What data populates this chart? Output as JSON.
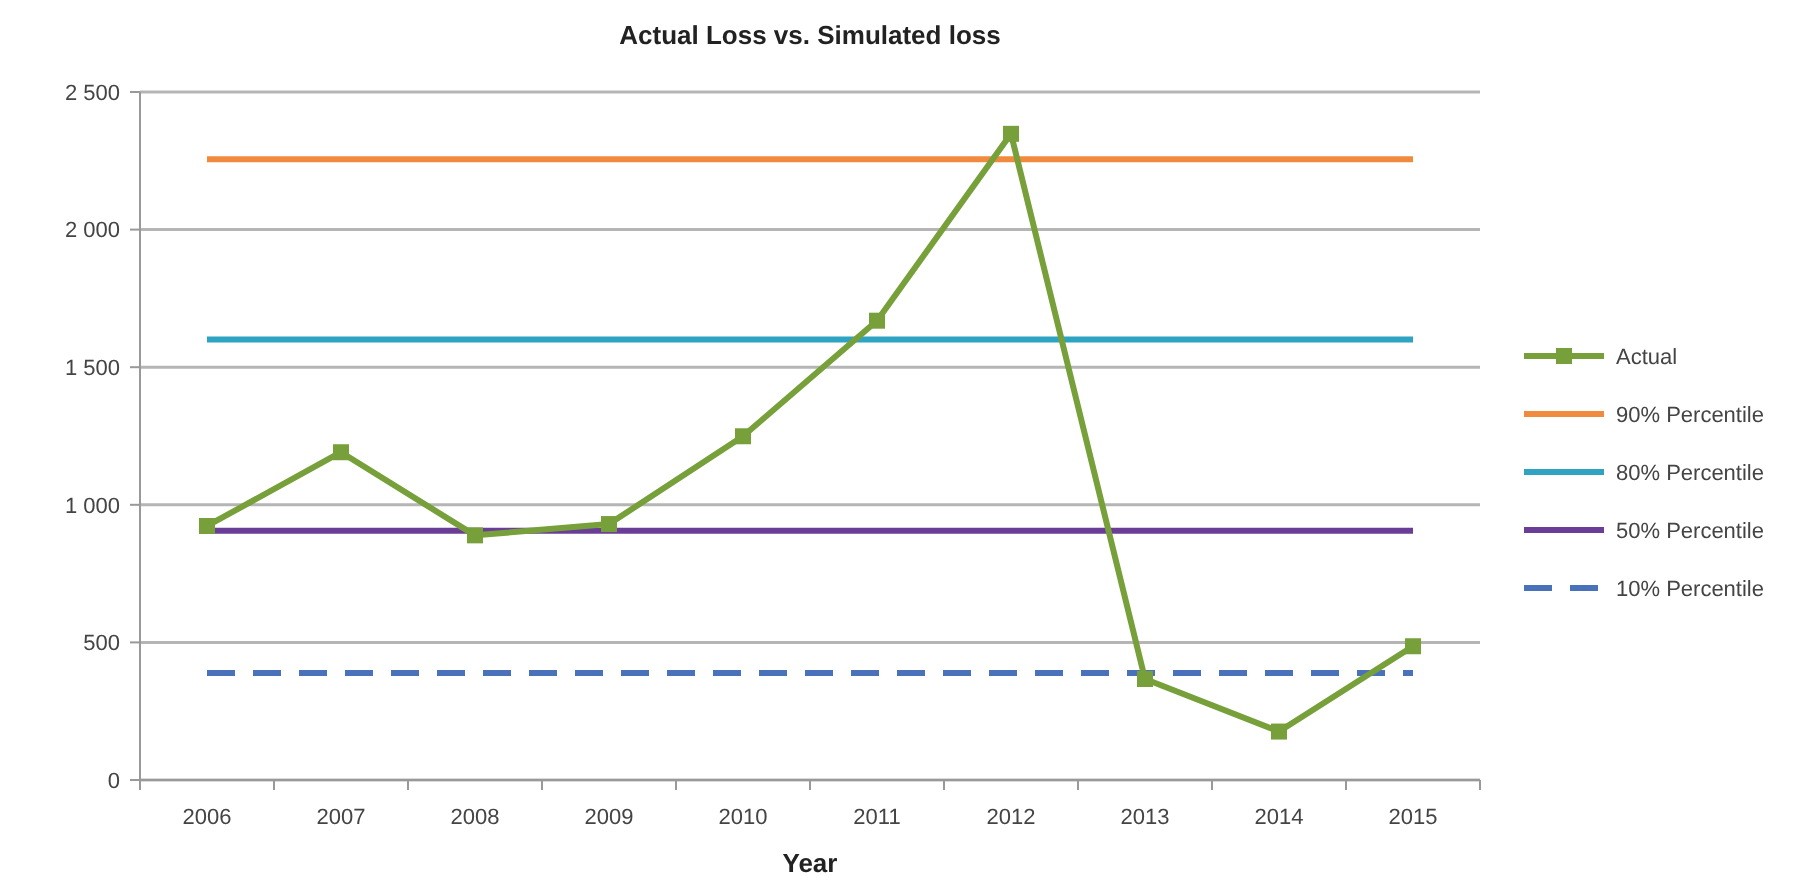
{
  "chart_data": {
    "type": "line",
    "title": "Actual Loss vs. Simulated loss",
    "xlabel": "Year",
    "categories": [
      "2006",
      "2007",
      "2008",
      "2009",
      "2010",
      "2011",
      "2012",
      "2013",
      "2014",
      "2015"
    ],
    "series": [
      {
        "name": "Actual",
        "color": "#77a03b",
        "marker": "square",
        "values": [
          923,
          1191,
          889,
          930,
          1249,
          1669,
          2348,
          367,
          176,
          486
        ]
      },
      {
        "name": "90% Percentile",
        "color": "#f08a3e",
        "marker": "none",
        "values": [
          2256,
          2256,
          2256,
          2256,
          2256,
          2256,
          2256,
          2256,
          2256,
          2256
        ]
      },
      {
        "name": "80% Percentile",
        "color": "#2fa3c2",
        "marker": "none",
        "values": [
          1601,
          1601,
          1601,
          1601,
          1601,
          1601,
          1601,
          1601,
          1601,
          1601
        ]
      },
      {
        "name": "50% Percentile",
        "color": "#6a3d96",
        "marker": "none",
        "values": [
          906,
          906,
          906,
          906,
          906,
          906,
          906,
          906,
          906,
          906
        ]
      },
      {
        "name": "10% Percentile",
        "color": "#4a72bb",
        "marker": "none",
        "line_style": "dashed",
        "values": [
          389,
          389,
          389,
          389,
          389,
          389,
          389,
          389,
          389,
          389
        ]
      }
    ],
    "ylim": [
      0,
      2500
    ],
    "yticks": [
      {
        "value": 0,
        "label": "0"
      },
      {
        "value": 500,
        "label": "500"
      },
      {
        "value": 1000,
        "label": "1 000"
      },
      {
        "value": 1500,
        "label": "1 500"
      },
      {
        "value": 2000,
        "label": "2 000"
      },
      {
        "value": 2500,
        "label": "2 500"
      }
    ],
    "grid": "y",
    "legend": "right"
  }
}
